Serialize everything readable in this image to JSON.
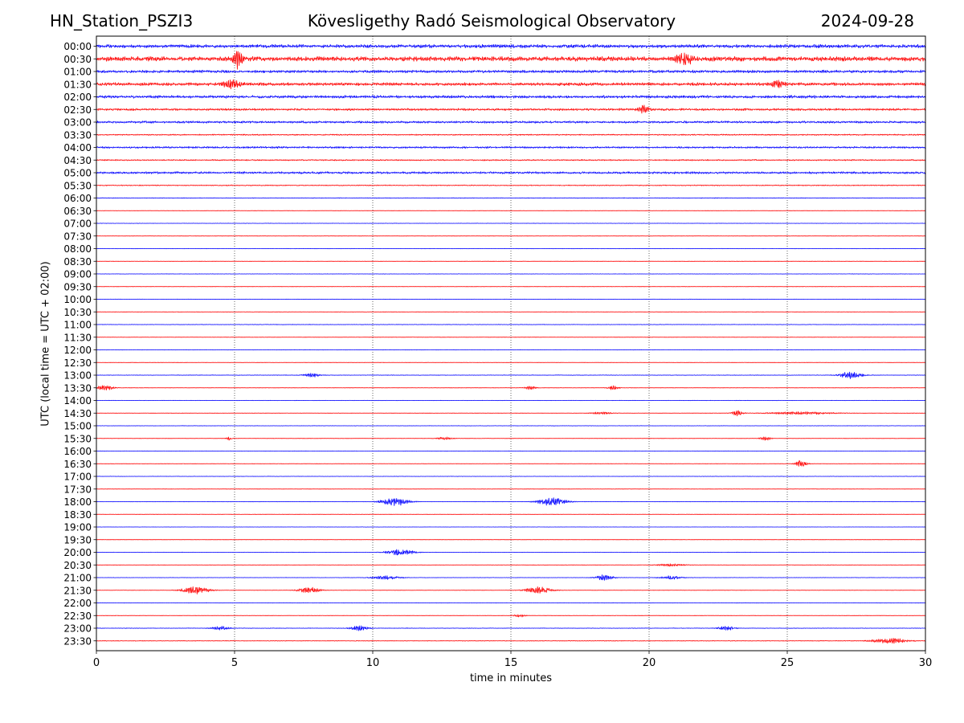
{
  "header": {
    "station": "HN_Station_PSZI3",
    "observatory": "Kövesligethy Radó Seismological Observatory",
    "date": "2024-09-28"
  },
  "chart_data": {
    "type": "line",
    "title": "Kövesligethy Radó Seismological Observatory",
    "xlabel": "time in minutes",
    "ylabel": "UTC (local time = UTC + 02:00)",
    "xlim": [
      0,
      30
    ],
    "x_ticks": [
      "0",
      "5",
      "10",
      "15",
      "20",
      "25",
      "30"
    ],
    "vertical_gridlines_minutes": [
      5,
      10,
      15,
      20,
      25
    ],
    "grid": "vertical dotted",
    "colors": {
      "even_row": "#0000ff",
      "odd_row": "#ff0000",
      "grid": "#000000"
    },
    "rows": [
      {
        "label": "00:00",
        "noise": 0.55,
        "events": []
      },
      {
        "label": "00:30",
        "noise": 0.75,
        "events": [
          {
            "t": 5.1,
            "amp": 1.5,
            "w": 0.15
          },
          {
            "t": 21.3,
            "amp": 0.8,
            "w": 0.3
          }
        ]
      },
      {
        "label": "01:00",
        "noise": 0.45,
        "events": []
      },
      {
        "label": "01:30",
        "noise": 0.5,
        "events": [
          {
            "t": 4.9,
            "amp": 0.6,
            "w": 0.3
          },
          {
            "t": 24.7,
            "amp": 0.6,
            "w": 0.2
          }
        ]
      },
      {
        "label": "02:00",
        "noise": 0.45,
        "events": []
      },
      {
        "label": "02:30",
        "noise": 0.35,
        "events": [
          {
            "t": 19.8,
            "amp": 0.6,
            "w": 0.2
          }
        ]
      },
      {
        "label": "03:00",
        "noise": 0.35,
        "events": []
      },
      {
        "label": "03:30",
        "noise": 0.2,
        "events": []
      },
      {
        "label": "04:00",
        "noise": 0.3,
        "events": []
      },
      {
        "label": "04:30",
        "noise": 0.2,
        "events": []
      },
      {
        "label": "05:00",
        "noise": 0.35,
        "events": []
      },
      {
        "label": "05:30",
        "noise": 0.15,
        "events": []
      },
      {
        "label": "06:00",
        "noise": 0.1,
        "events": []
      },
      {
        "label": "06:30",
        "noise": 0.05,
        "events": []
      },
      {
        "label": "07:00",
        "noise": 0.05,
        "events": []
      },
      {
        "label": "07:30",
        "noise": 0.05,
        "events": []
      },
      {
        "label": "08:00",
        "noise": 0.05,
        "events": []
      },
      {
        "label": "08:30",
        "noise": 0.05,
        "events": []
      },
      {
        "label": "09:00",
        "noise": 0.05,
        "events": []
      },
      {
        "label": "09:30",
        "noise": 0.05,
        "events": []
      },
      {
        "label": "10:00",
        "noise": 0.05,
        "events": []
      },
      {
        "label": "10:30",
        "noise": 0.05,
        "events": []
      },
      {
        "label": "11:00",
        "noise": 0.08,
        "events": []
      },
      {
        "label": "11:30",
        "noise": 0.05,
        "events": []
      },
      {
        "label": "12:00",
        "noise": 0.05,
        "events": []
      },
      {
        "label": "12:30",
        "noise": 0.05,
        "events": []
      },
      {
        "label": "13:00",
        "noise": 0.08,
        "events": [
          {
            "t": 7.8,
            "amp": 0.3,
            "w": 0.3
          },
          {
            "t": 27.3,
            "amp": 0.5,
            "w": 0.4
          }
        ]
      },
      {
        "label": "13:30",
        "noise": 0.05,
        "events": [
          {
            "t": 0.3,
            "amp": 0.4,
            "w": 0.3
          },
          {
            "t": 15.7,
            "amp": 0.3,
            "w": 0.2
          },
          {
            "t": 18.7,
            "amp": 0.3,
            "w": 0.2
          }
        ]
      },
      {
        "label": "14:00",
        "noise": 0.05,
        "events": []
      },
      {
        "label": "14:30",
        "noise": 0.05,
        "events": [
          {
            "t": 18.3,
            "amp": 0.2,
            "w": 0.4
          },
          {
            "t": 23.2,
            "amp": 0.4,
            "w": 0.2
          },
          {
            "t": 25.5,
            "amp": 0.2,
            "w": 1.2
          }
        ]
      },
      {
        "label": "15:00",
        "noise": 0.05,
        "events": []
      },
      {
        "label": "15:30",
        "noise": 0.05,
        "events": [
          {
            "t": 4.8,
            "amp": 0.3,
            "w": 0.1
          },
          {
            "t": 12.6,
            "amp": 0.2,
            "w": 0.3
          },
          {
            "t": 24.2,
            "amp": 0.3,
            "w": 0.2
          }
        ]
      },
      {
        "label": "16:00",
        "noise": 0.05,
        "events": []
      },
      {
        "label": "16:30",
        "noise": 0.05,
        "events": [
          {
            "t": 25.5,
            "amp": 0.5,
            "w": 0.2
          }
        ]
      },
      {
        "label": "17:00",
        "noise": 0.05,
        "events": []
      },
      {
        "label": "17:30",
        "noise": 0.05,
        "events": []
      },
      {
        "label": "18:00",
        "noise": 0.05,
        "events": [
          {
            "t": 10.8,
            "amp": 0.6,
            "w": 0.5
          },
          {
            "t": 16.5,
            "amp": 0.6,
            "w": 0.5
          }
        ]
      },
      {
        "label": "18:30",
        "noise": 0.05,
        "events": []
      },
      {
        "label": "19:00",
        "noise": 0.03,
        "events": []
      },
      {
        "label": "19:30",
        "noise": 0.03,
        "events": []
      },
      {
        "label": "20:00",
        "noise": 0.05,
        "events": [
          {
            "t": 11.0,
            "amp": 0.45,
            "w": 0.5
          }
        ]
      },
      {
        "label": "20:30",
        "noise": 0.05,
        "events": [
          {
            "t": 20.8,
            "amp": 0.2,
            "w": 0.5
          }
        ]
      },
      {
        "label": "21:00",
        "noise": 0.05,
        "events": [
          {
            "t": 10.5,
            "amp": 0.3,
            "w": 0.5
          },
          {
            "t": 18.4,
            "amp": 0.45,
            "w": 0.3
          },
          {
            "t": 20.8,
            "amp": 0.25,
            "w": 0.4
          }
        ]
      },
      {
        "label": "21:30",
        "noise": 0.05,
        "events": [
          {
            "t": 3.6,
            "amp": 0.55,
            "w": 0.5
          },
          {
            "t": 7.7,
            "amp": 0.45,
            "w": 0.4
          },
          {
            "t": 16.0,
            "amp": 0.5,
            "w": 0.5
          }
        ]
      },
      {
        "label": "22:00",
        "noise": 0.05,
        "events": []
      },
      {
        "label": "22:30",
        "noise": 0.05,
        "events": [
          {
            "t": 15.3,
            "amp": 0.25,
            "w": 0.2
          }
        ]
      },
      {
        "label": "23:00",
        "noise": 0.08,
        "events": [
          {
            "t": 4.5,
            "amp": 0.3,
            "w": 0.3
          },
          {
            "t": 9.5,
            "amp": 0.4,
            "w": 0.3
          },
          {
            "t": 22.8,
            "amp": 0.3,
            "w": 0.3
          }
        ]
      },
      {
        "label": "23:30",
        "noise": 0.1,
        "events": [
          {
            "t": 28.7,
            "amp": 0.4,
            "w": 0.6
          }
        ]
      }
    ]
  }
}
